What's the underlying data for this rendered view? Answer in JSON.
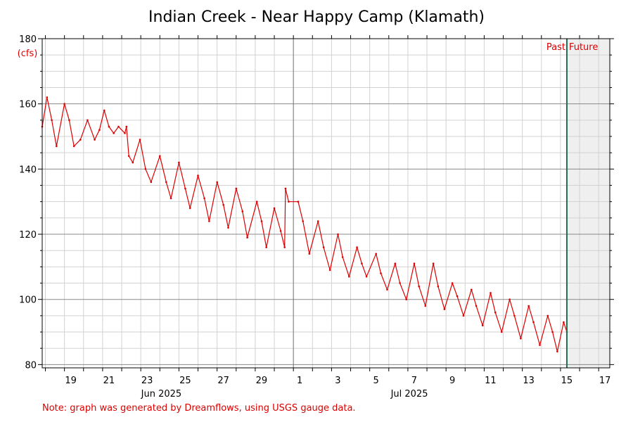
{
  "chart_data": {
    "type": "line",
    "title": "Indian Creek - Near Happy Camp (Klamath)",
    "ylabel": "(cfs)",
    "xlabel": "",
    "ylim": [
      79,
      180
    ],
    "xlim": [
      "2025-06-17T20:00",
      "2025-07-17T14:00"
    ],
    "y_ticks": [
      80,
      100,
      120,
      140,
      160,
      180
    ],
    "x_tick_labels": [
      {
        "date": "2025-06-19",
        "label": "19"
      },
      {
        "date": "2025-06-21",
        "label": "21"
      },
      {
        "date": "2025-06-23",
        "label": "23"
      },
      {
        "date": "2025-06-25",
        "label": "25"
      },
      {
        "date": "2025-06-27",
        "label": "27"
      },
      {
        "date": "2025-06-29",
        "label": "29"
      },
      {
        "date": "2025-07-01",
        "label": "1"
      },
      {
        "date": "2025-07-03",
        "label": "3"
      },
      {
        "date": "2025-07-05",
        "label": "5"
      },
      {
        "date": "2025-07-07",
        "label": "7"
      },
      {
        "date": "2025-07-09",
        "label": "9"
      },
      {
        "date": "2025-07-11",
        "label": "11"
      },
      {
        "date": "2025-07-13",
        "label": "13"
      },
      {
        "date": "2025-07-15",
        "label": "15"
      },
      {
        "date": "2025-07-17",
        "label": "17"
      }
    ],
    "month_labels": [
      {
        "date": "2025-06-25",
        "label": "Jun 2025"
      },
      {
        "date": "2025-07-08",
        "label": "Jul 2025"
      }
    ],
    "month_divider": "2025-07-01",
    "now_marker": {
      "date": "2025-07-15T08:00",
      "past_label": "Past",
      "future_label": "Future"
    },
    "grid": true,
    "series": [
      {
        "color": "#dd0000",
        "points": [
          [
            "2025-06-17T20:00",
            153
          ],
          [
            "2025-06-18T02:00",
            162
          ],
          [
            "2025-06-18T08:00",
            155
          ],
          [
            "2025-06-18T14:00",
            147
          ],
          [
            "2025-06-19T00:00",
            160
          ],
          [
            "2025-06-19T06:00",
            155
          ],
          [
            "2025-06-19T12:00",
            147
          ],
          [
            "2025-06-19T20:00",
            149
          ],
          [
            "2025-06-20T05:00",
            155
          ],
          [
            "2025-06-20T14:00",
            149
          ],
          [
            "2025-06-20T20:00",
            152
          ],
          [
            "2025-06-21T02:00",
            158
          ],
          [
            "2025-06-21T08:00",
            153
          ],
          [
            "2025-06-21T14:00",
            151
          ],
          [
            "2025-06-21T20:00",
            153
          ],
          [
            "2025-06-22T04:00",
            151
          ],
          [
            "2025-06-22T06:00",
            153
          ],
          [
            "2025-06-22T09:00",
            144
          ],
          [
            "2025-06-22T14:00",
            142
          ],
          [
            "2025-06-22T23:00",
            149
          ],
          [
            "2025-06-23T06:00",
            140
          ],
          [
            "2025-06-23T13:00",
            136
          ],
          [
            "2025-06-24T00:00",
            144
          ],
          [
            "2025-06-24T08:00",
            136
          ],
          [
            "2025-06-24T14:00",
            131
          ],
          [
            "2025-06-25T00:00",
            142
          ],
          [
            "2025-06-25T08:00",
            134
          ],
          [
            "2025-06-25T14:00",
            128
          ],
          [
            "2025-06-26T00:00",
            138
          ],
          [
            "2025-06-26T08:00",
            131
          ],
          [
            "2025-06-26T14:00",
            124
          ],
          [
            "2025-06-27T00:00",
            136
          ],
          [
            "2025-06-27T08:00",
            129
          ],
          [
            "2025-06-27T14:00",
            122
          ],
          [
            "2025-06-28T00:00",
            134
          ],
          [
            "2025-06-28T08:00",
            127
          ],
          [
            "2025-06-28T14:00",
            119
          ],
          [
            "2025-06-29T02:00",
            130
          ],
          [
            "2025-06-29T08:00",
            124
          ],
          [
            "2025-06-29T14:00",
            116
          ],
          [
            "2025-06-30T00:00",
            128
          ],
          [
            "2025-06-30T08:00",
            121
          ],
          [
            "2025-06-30T13:00",
            116
          ],
          [
            "2025-06-30T14:00",
            134
          ],
          [
            "2025-06-30T18:00",
            130
          ],
          [
            "2025-07-01T06:00",
            130
          ],
          [
            "2025-07-01T12:00",
            124
          ],
          [
            "2025-07-01T20:00",
            114
          ],
          [
            "2025-07-02T07:00",
            124
          ],
          [
            "2025-07-02T14:00",
            116
          ],
          [
            "2025-07-02T22:00",
            109
          ],
          [
            "2025-07-03T08:00",
            120
          ],
          [
            "2025-07-03T14:00",
            113
          ],
          [
            "2025-07-03T22:00",
            107
          ],
          [
            "2025-07-04T08:00",
            116
          ],
          [
            "2025-07-04T14:00",
            111
          ],
          [
            "2025-07-04T20:00",
            107
          ],
          [
            "2025-07-05T08:00",
            114
          ],
          [
            "2025-07-05T14:00",
            108
          ],
          [
            "2025-07-05T22:00",
            103
          ],
          [
            "2025-07-06T08:00",
            111
          ],
          [
            "2025-07-06T14:00",
            105
          ],
          [
            "2025-07-06T22:00",
            100
          ],
          [
            "2025-07-07T08:00",
            111
          ],
          [
            "2025-07-07T14:00",
            104
          ],
          [
            "2025-07-07T22:00",
            98
          ],
          [
            "2025-07-08T08:00",
            111
          ],
          [
            "2025-07-08T14:00",
            104
          ],
          [
            "2025-07-08T22:00",
            97
          ],
          [
            "2025-07-09T08:00",
            105
          ],
          [
            "2025-07-09T14:00",
            101
          ],
          [
            "2025-07-09T22:00",
            95
          ],
          [
            "2025-07-10T08:00",
            103
          ],
          [
            "2025-07-10T14:00",
            98
          ],
          [
            "2025-07-10T22:00",
            92
          ],
          [
            "2025-07-11T08:00",
            102
          ],
          [
            "2025-07-11T14:00",
            96
          ],
          [
            "2025-07-11T22:00",
            90
          ],
          [
            "2025-07-12T08:00",
            100
          ],
          [
            "2025-07-12T14:00",
            95
          ],
          [
            "2025-07-12T22:00",
            88
          ],
          [
            "2025-07-13T08:00",
            98
          ],
          [
            "2025-07-13T14:00",
            93
          ],
          [
            "2025-07-13T22:00",
            86
          ],
          [
            "2025-07-14T08:00",
            95
          ],
          [
            "2025-07-14T14:00",
            90
          ],
          [
            "2025-07-14T20:00",
            84
          ],
          [
            "2025-07-15T04:00",
            93
          ],
          [
            "2025-07-15T08:00",
            90
          ]
        ]
      }
    ]
  },
  "footnote": "Note: graph was generated by Dreamflows, using USGS gauge data."
}
